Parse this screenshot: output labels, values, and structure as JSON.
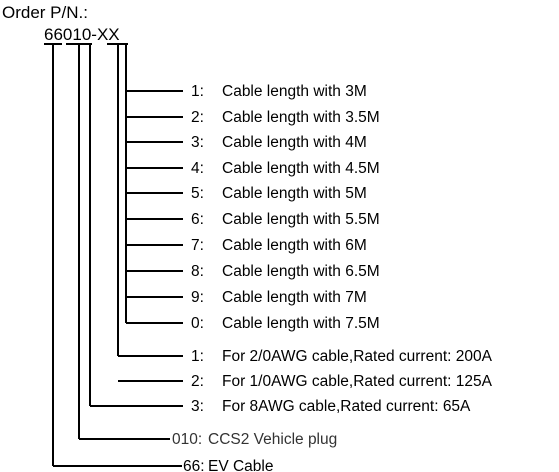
{
  "header": {
    "order_label": "Order P/N.:",
    "pn_prefix": "66",
    "pn_plug": "010",
    "pn_dash": "-",
    "pn_suffix": "XX"
  },
  "length_options": [
    {
      "code": "1:",
      "text": "Cable length with 3M"
    },
    {
      "code": "2:",
      "text": "Cable length with 3.5M"
    },
    {
      "code": "3:",
      "text": "Cable length with 4M"
    },
    {
      "code": "4:",
      "text": "Cable length with 4.5M"
    },
    {
      "code": "5:",
      "text": "Cable length with 5M"
    },
    {
      "code": "6:",
      "text": "Cable length with 5.5M"
    },
    {
      "code": "7:",
      "text": "Cable length with 6M"
    },
    {
      "code": "8:",
      "text": "Cable length with 6.5M"
    },
    {
      "code": "9:",
      "text": "Cable length with 7M"
    },
    {
      "code": "0:",
      "text": "Cable length with 7.5M"
    }
  ],
  "cable_options": [
    {
      "code": "1:",
      "text": "For 2/0AWG cable,Rated current: 200A"
    },
    {
      "code": "2:",
      "text": "For 1/0AWG cable,Rated current: 125A"
    },
    {
      "code": "3:",
      "text": "For 8AWG cable,Rated current: 65A"
    }
  ],
  "plug_option": {
    "code": "010:",
    "text": "CCS2 Vehicle plug"
  },
  "type_option": {
    "code": "66:",
    "text": "EV Cable"
  }
}
